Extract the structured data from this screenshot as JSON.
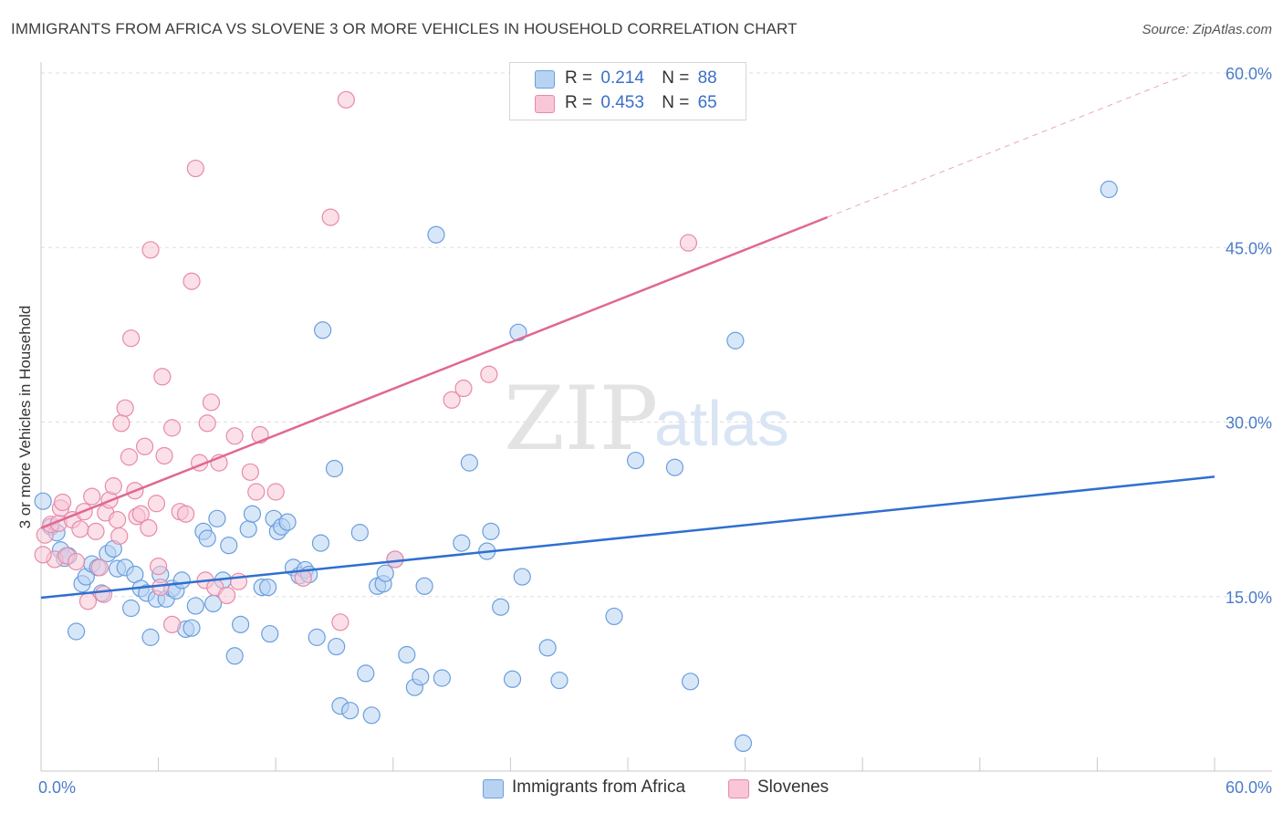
{
  "title": "IMMIGRANTS FROM AFRICA VS SLOVENE 3 OR MORE VEHICLES IN HOUSEHOLD CORRELATION CHART",
  "source": "Source: ZipAtlas.com",
  "watermark": {
    "zip": "ZIP",
    "atlas": "atlas"
  },
  "legend_top": {
    "rows": [
      {
        "r_label": "R =",
        "r_value": "0.214",
        "n_label": "N =",
        "n_value": "88"
      },
      {
        "r_label": "R =",
        "r_value": "0.453",
        "n_label": "N =",
        "n_value": "65"
      }
    ]
  },
  "legend_bottom": [
    "Immigrants from Africa",
    "Slovenes"
  ],
  "chart_data": {
    "type": "scatter",
    "title": "IMMIGRANTS FROM AFRICA VS SLOVENE 3 OR MORE VEHICLES IN HOUSEHOLD CORRELATION CHART",
    "xlabel": "",
    "ylabel": "3 or more Vehicles in Household",
    "xlim": [
      0,
      60
    ],
    "ylim": [
      0,
      60
    ],
    "x_tick_labels": [
      "0.0%",
      "60.0%"
    ],
    "y_ticks": [
      15,
      30,
      45,
      60
    ],
    "y_tick_labels": [
      "15.0%",
      "30.0%",
      "45.0%",
      "60.0%"
    ],
    "grid": true,
    "legend_position": "top-center",
    "colors": {
      "africa_fill": "#b8d3f2",
      "africa_stroke": "#6a9ede",
      "africa_line": "#2f6fcf",
      "slovene_fill": "#f8c6d6",
      "slovene_stroke": "#e88aaa",
      "slovene_line": "#e06890"
    },
    "series": [
      {
        "name": "Immigrants from Africa",
        "color": "#6a9ede",
        "trend": {
          "x": [
            0,
            60
          ],
          "y": [
            14.9,
            25.3
          ]
        },
        "points": [
          [
            0.1,
            23.2
          ],
          [
            0.5,
            21.0
          ],
          [
            0.8,
            20.5
          ],
          [
            1.0,
            19.0
          ],
          [
            1.2,
            18.3
          ],
          [
            1.4,
            18.5
          ],
          [
            1.8,
            12.0
          ],
          [
            2.1,
            16.1
          ],
          [
            2.3,
            16.7
          ],
          [
            2.6,
            17.8
          ],
          [
            2.9,
            17.5
          ],
          [
            3.1,
            15.3
          ],
          [
            3.4,
            18.7
          ],
          [
            3.7,
            19.1
          ],
          [
            3.9,
            17.4
          ],
          [
            4.3,
            17.5
          ],
          [
            4.6,
            14.0
          ],
          [
            4.8,
            16.9
          ],
          [
            5.1,
            15.7
          ],
          [
            5.4,
            15.3
          ],
          [
            5.6,
            11.5
          ],
          [
            5.9,
            14.8
          ],
          [
            6.1,
            16.9
          ],
          [
            6.4,
            14.8
          ],
          [
            6.7,
            15.7
          ],
          [
            6.9,
            15.5
          ],
          [
            7.2,
            16.4
          ],
          [
            7.4,
            12.2
          ],
          [
            7.7,
            12.3
          ],
          [
            7.9,
            14.2
          ],
          [
            8.3,
            20.6
          ],
          [
            8.5,
            20.0
          ],
          [
            8.8,
            14.4
          ],
          [
            9.0,
            21.7
          ],
          [
            9.3,
            16.4
          ],
          [
            9.6,
            19.4
          ],
          [
            9.9,
            9.9
          ],
          [
            10.2,
            12.6
          ],
          [
            10.6,
            20.8
          ],
          [
            10.8,
            22.1
          ],
          [
            11.3,
            15.8
          ],
          [
            11.6,
            15.8
          ],
          [
            11.7,
            11.8
          ],
          [
            11.9,
            21.7
          ],
          [
            12.1,
            20.6
          ],
          [
            12.3,
            21.0
          ],
          [
            12.6,
            21.4
          ],
          [
            12.9,
            17.5
          ],
          [
            13.2,
            16.8
          ],
          [
            13.5,
            17.3
          ],
          [
            13.7,
            16.9
          ],
          [
            14.1,
            11.5
          ],
          [
            14.3,
            19.6
          ],
          [
            14.4,
            37.9
          ],
          [
            15.0,
            26.0
          ],
          [
            15.1,
            10.7
          ],
          [
            15.3,
            5.6
          ],
          [
            15.8,
            5.2
          ],
          [
            16.3,
            20.5
          ],
          [
            16.6,
            8.4
          ],
          [
            16.9,
            4.8
          ],
          [
            17.2,
            15.9
          ],
          [
            17.5,
            16.1
          ],
          [
            17.6,
            17.0
          ],
          [
            18.1,
            18.2
          ],
          [
            18.7,
            10.0
          ],
          [
            19.1,
            7.2
          ],
          [
            19.4,
            8.1
          ],
          [
            19.6,
            15.9
          ],
          [
            20.2,
            46.1
          ],
          [
            20.5,
            8.0
          ],
          [
            21.5,
            19.6
          ],
          [
            21.9,
            26.5
          ],
          [
            22.8,
            18.9
          ],
          [
            23.0,
            20.6
          ],
          [
            23.5,
            14.1
          ],
          [
            24.1,
            7.9
          ],
          [
            24.4,
            37.7
          ],
          [
            24.6,
            16.7
          ],
          [
            25.9,
            10.6
          ],
          [
            26.5,
            7.8
          ],
          [
            29.3,
            13.3
          ],
          [
            30.4,
            26.7
          ],
          [
            32.4,
            26.1
          ],
          [
            33.2,
            7.7
          ],
          [
            35.5,
            37.0
          ],
          [
            35.9,
            2.4
          ],
          [
            54.6,
            50.0
          ]
        ]
      },
      {
        "name": "Slovenes",
        "color": "#e88aaa",
        "trend": {
          "x": [
            0,
            40.2
          ],
          "y": [
            20.9,
            47.6
          ]
        },
        "trend_extension": {
          "x": [
            40.2,
            58.8
          ],
          "y": [
            47.6,
            60.0
          ]
        },
        "points": [
          [
            0.2,
            20.3
          ],
          [
            0.5,
            21.2
          ],
          [
            0.7,
            18.2
          ],
          [
            0.9,
            21.3
          ],
          [
            1.0,
            22.6
          ],
          [
            1.1,
            23.1
          ],
          [
            1.3,
            18.5
          ],
          [
            1.6,
            21.6
          ],
          [
            1.8,
            18.0
          ],
          [
            2.0,
            20.8
          ],
          [
            2.2,
            22.3
          ],
          [
            2.4,
            14.6
          ],
          [
            2.6,
            23.6
          ],
          [
            2.8,
            20.6
          ],
          [
            3.0,
            17.5
          ],
          [
            3.2,
            15.2
          ],
          [
            3.3,
            22.2
          ],
          [
            3.5,
            23.3
          ],
          [
            3.7,
            24.5
          ],
          [
            3.9,
            21.6
          ],
          [
            4.0,
            20.2
          ],
          [
            4.1,
            29.9
          ],
          [
            4.3,
            31.2
          ],
          [
            4.5,
            27.0
          ],
          [
            4.6,
            37.2
          ],
          [
            4.8,
            24.1
          ],
          [
            4.9,
            21.9
          ],
          [
            5.1,
            22.1
          ],
          [
            5.3,
            27.9
          ],
          [
            5.5,
            20.9
          ],
          [
            5.6,
            44.8
          ],
          [
            5.9,
            23.0
          ],
          [
            6.0,
            17.6
          ],
          [
            6.1,
            15.8
          ],
          [
            6.2,
            33.9
          ],
          [
            6.3,
            27.1
          ],
          [
            6.7,
            29.5
          ],
          [
            6.7,
            12.6
          ],
          [
            7.1,
            22.3
          ],
          [
            7.4,
            22.1
          ],
          [
            7.7,
            42.1
          ],
          [
            7.9,
            51.8
          ],
          [
            8.1,
            26.5
          ],
          [
            8.4,
            16.4
          ],
          [
            8.5,
            29.9
          ],
          [
            8.7,
            31.7
          ],
          [
            8.9,
            15.8
          ],
          [
            9.1,
            26.5
          ],
          [
            9.5,
            15.1
          ],
          [
            9.9,
            28.8
          ],
          [
            10.1,
            16.3
          ],
          [
            10.7,
            25.7
          ],
          [
            11.0,
            24.0
          ],
          [
            11.2,
            28.9
          ],
          [
            12.0,
            24.0
          ],
          [
            13.4,
            16.6
          ],
          [
            14.8,
            47.6
          ],
          [
            15.3,
            12.8
          ],
          [
            15.6,
            57.7
          ],
          [
            18.1,
            18.2
          ],
          [
            21.0,
            31.9
          ],
          [
            21.6,
            32.9
          ],
          [
            22.9,
            34.1
          ],
          [
            33.1,
            45.4
          ],
          [
            0.1,
            18.6
          ]
        ]
      }
    ]
  }
}
